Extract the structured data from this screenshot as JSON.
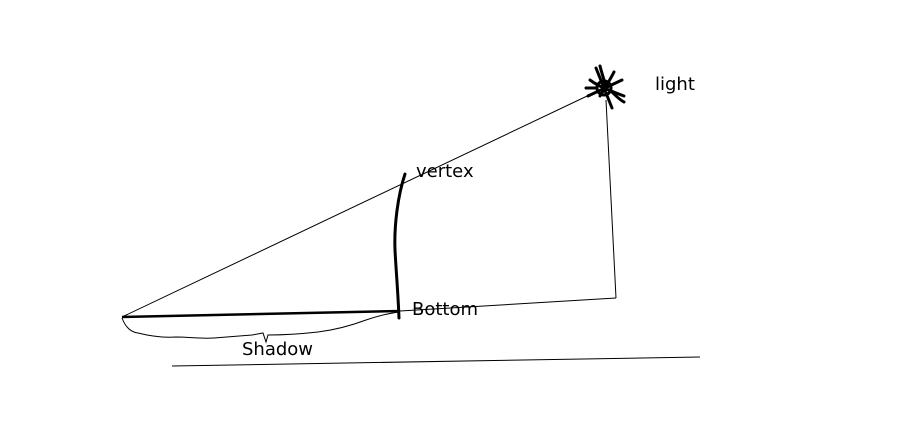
{
  "labels": {
    "light": "light",
    "vertex": "vertex",
    "bottom": "Bottom",
    "shadow": "Shadow"
  },
  "colors": {
    "ink": "#000000",
    "background": "#ffffff"
  },
  "icons": {
    "light_source": "sun-icon"
  }
}
